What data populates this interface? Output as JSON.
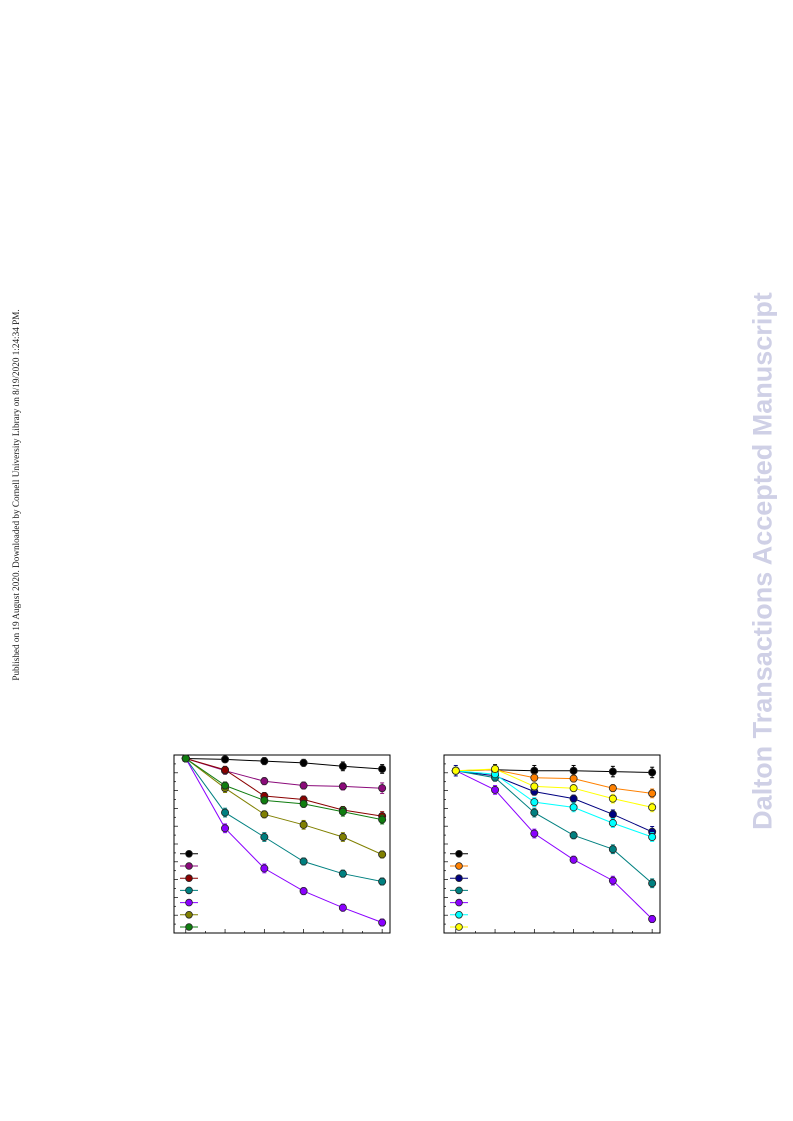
{
  "side_note": "Published on 19 August 2020. Downloaded by Cornell University Library on 8/19/2020 1:24:34 PM.",
  "watermark": "Dalton Transactions Accepted Manuscript",
  "chart_data": [
    {
      "type": "line",
      "x": [
        0,
        1,
        2,
        3,
        4,
        5
      ],
      "xlim": [
        -0.3,
        5.2
      ],
      "ylim": [
        0.0,
        1.02
      ],
      "grid": false,
      "legend_placement": "bottom-left",
      "series": [
        {
          "color": "#000000",
          "values": [
            1.0,
            0.995,
            0.985,
            0.975,
            0.955,
            0.94
          ],
          "errors": [
            0.015,
            0.012,
            0.02,
            0.02,
            0.025,
            0.025
          ]
        },
        {
          "color": "#8b0a7a",
          "values": [
            1.0,
            0.93,
            0.87,
            0.845,
            0.84,
            0.83
          ],
          "errors": [
            0.015,
            0.02,
            0.02,
            0.02,
            0.02,
            0.03
          ]
        },
        {
          "color": "#8b0000",
          "values": [
            1.0,
            0.935,
            0.785,
            0.765,
            0.705,
            0.67
          ],
          "errors": [
            0.015,
            0.02,
            0.02,
            0.02,
            0.02,
            0.025
          ]
        },
        {
          "color": "#008080",
          "values": [
            1.0,
            0.69,
            0.55,
            0.41,
            0.34,
            0.295
          ],
          "errors": [
            0.015,
            0.025,
            0.025,
            0.02,
            0.02,
            0.02
          ]
        },
        {
          "color": "#8a00ff",
          "values": [
            1.0,
            0.6,
            0.37,
            0.24,
            0.145,
            0.06
          ],
          "errors": [
            0.015,
            0.025,
            0.025,
            0.02,
            0.02,
            0.02
          ]
        },
        {
          "color": "#808000",
          "values": [
            1.0,
            0.83,
            0.68,
            0.62,
            0.55,
            0.45
          ],
          "errors": [
            0.015,
            0.025,
            0.02,
            0.025,
            0.025,
            0.02
          ]
        },
        {
          "color": "#0f7d0f",
          "values": [
            1.0,
            0.845,
            0.76,
            0.74,
            0.695,
            0.65
          ],
          "errors": [
            0.015,
            0.02,
            0.02,
            0.02,
            0.025,
            0.025
          ]
        }
      ]
    },
    {
      "type": "line",
      "x": [
        0,
        1,
        2,
        3,
        4,
        5
      ],
      "xlim": [
        -0.3,
        5.2
      ],
      "ylim": [
        0.0,
        1.02
      ],
      "grid": false,
      "legend_placement": "bottom-left",
      "series": [
        {
          "color": "#000000",
          "values": [
            0.93,
            0.935,
            0.93,
            0.93,
            0.925,
            0.92
          ],
          "errors": [
            0.02,
            0.03,
            0.03,
            0.03,
            0.03,
            0.03
          ]
        },
        {
          "color": "#ff8000",
          "values": [
            0.93,
            0.935,
            0.89,
            0.885,
            0.83,
            0.8
          ],
          "errors": [
            0.02,
            0.02,
            0.02,
            0.02,
            0.02,
            0.025
          ]
        },
        {
          "color": "#000080",
          "values": [
            0.93,
            0.9,
            0.81,
            0.77,
            0.68,
            0.58
          ],
          "errors": [
            0.03,
            0.025,
            0.02,
            0.02,
            0.025,
            0.03
          ]
        },
        {
          "color": "#008080",
          "values": [
            0.93,
            0.89,
            0.69,
            0.56,
            0.48,
            0.285
          ],
          "errors": [
            0.02,
            0.02,
            0.025,
            0.02,
            0.025,
            0.025
          ]
        },
        {
          "color": "#8a00ff",
          "values": [
            0.93,
            0.82,
            0.57,
            0.42,
            0.3,
            0.08
          ],
          "errors": [
            0.02,
            0.025,
            0.025,
            0.02,
            0.025,
            0.02
          ]
        },
        {
          "color": "#00ffff",
          "values": [
            0.93,
            0.91,
            0.75,
            0.72,
            0.63,
            0.55
          ],
          "errors": [
            0.02,
            0.02,
            0.025,
            0.025,
            0.025,
            0.025
          ]
        },
        {
          "color": "#ffff00",
          "values": [
            0.93,
            0.94,
            0.84,
            0.83,
            0.77,
            0.72
          ],
          "errors": [
            0.02,
            0.02,
            0.02,
            0.02,
            0.025,
            0.025
          ]
        }
      ]
    }
  ]
}
